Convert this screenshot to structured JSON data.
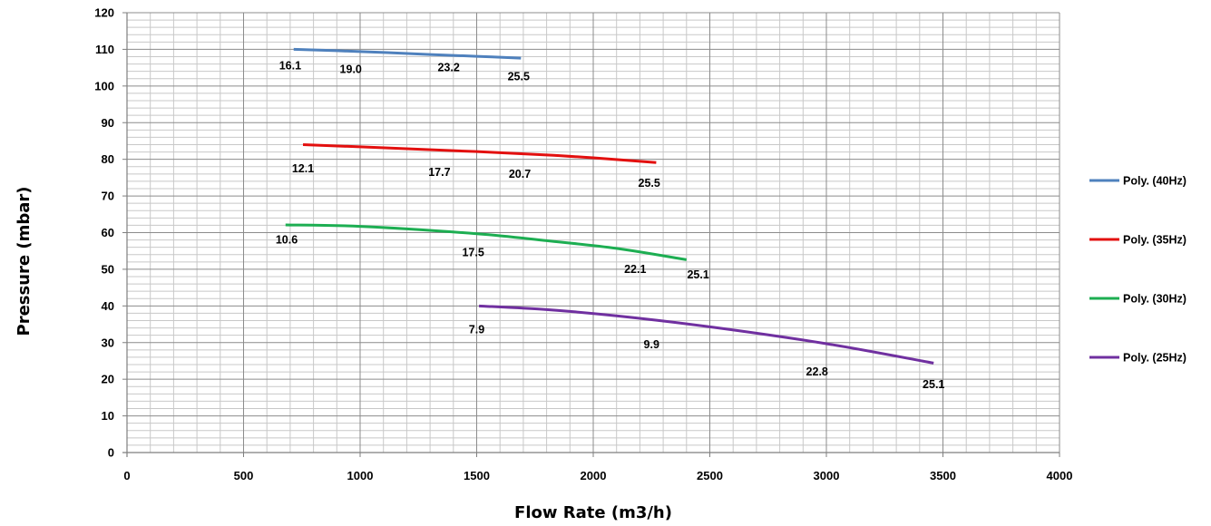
{
  "chart_data": {
    "type": "line",
    "title": "",
    "xlabel": "Flow Rate (m3/h)",
    "ylabel": "Pressure (mbar)",
    "xlim": [
      0,
      4000
    ],
    "ylim": [
      0,
      120
    ],
    "xticks": [
      0,
      500,
      1000,
      1500,
      2000,
      2500,
      3000,
      3500,
      4000
    ],
    "yticks": [
      0,
      10,
      20,
      30,
      40,
      50,
      60,
      70,
      80,
      90,
      100,
      110,
      120
    ],
    "grid": true,
    "legend_position": "right",
    "series": [
      {
        "name": "Poly. (40Hz)",
        "color": "#4F81BD",
        "points": [
          [
            715,
            110
          ],
          [
            1000,
            109.4
          ],
          [
            1300,
            108.6
          ],
          [
            1500,
            108.1
          ],
          [
            1690,
            107.6
          ]
        ],
        "labels": [
          {
            "text": "16.1",
            "x": 700,
            "y": 105.5
          },
          {
            "text": "19.0",
            "x": 960,
            "y": 104.5
          },
          {
            "text": "23.2",
            "x": 1380,
            "y": 105
          },
          {
            "text": "25.5",
            "x": 1680,
            "y": 102.5
          }
        ]
      },
      {
        "name": "Poly. (35Hz)",
        "color": "#E3100F",
        "points": [
          [
            755,
            84
          ],
          [
            1000,
            83.4
          ],
          [
            1500,
            82.1
          ],
          [
            1800,
            81.2
          ],
          [
            2000,
            80.4
          ],
          [
            2270,
            79.1
          ]
        ],
        "labels": [
          {
            "text": "12.1",
            "x": 755,
            "y": 77.5
          },
          {
            "text": "17.7",
            "x": 1340,
            "y": 76.5
          },
          {
            "text": "20.7",
            "x": 1685,
            "y": 76
          },
          {
            "text": "25.5",
            "x": 2240,
            "y": 73.5
          }
        ]
      },
      {
        "name": "Poly. (30Hz)",
        "color": "#1DAE52",
        "points": [
          [
            680,
            62.1
          ],
          [
            1000,
            61.7
          ],
          [
            1500,
            59.7
          ],
          [
            1800,
            57.8
          ],
          [
            2100,
            55.7
          ],
          [
            2400,
            52.6
          ]
        ],
        "labels": [
          {
            "text": "10.6",
            "x": 685,
            "y": 58
          },
          {
            "text": "17.5",
            "x": 1485,
            "y": 54.5
          },
          {
            "text": "22.1",
            "x": 2180,
            "y": 50
          },
          {
            "text": "25.1",
            "x": 2450,
            "y": 48.5
          }
        ]
      },
      {
        "name": "Poly. (25Hz)",
        "color": "#7030A0",
        "points": [
          [
            1510,
            40
          ],
          [
            1800,
            39
          ],
          [
            2100,
            37.3
          ],
          [
            2500,
            34.3
          ],
          [
            3000,
            29.7
          ],
          [
            3460,
            24.4
          ]
        ],
        "labels": [
          {
            "text": "7.9",
            "x": 1500,
            "y": 33.5
          },
          {
            "text": "9.9",
            "x": 2250,
            "y": 29.5
          },
          {
            "text": "22.8",
            "x": 2960,
            "y": 22
          },
          {
            "text": "25.1",
            "x": 3460,
            "y": 18.5
          }
        ]
      }
    ]
  }
}
